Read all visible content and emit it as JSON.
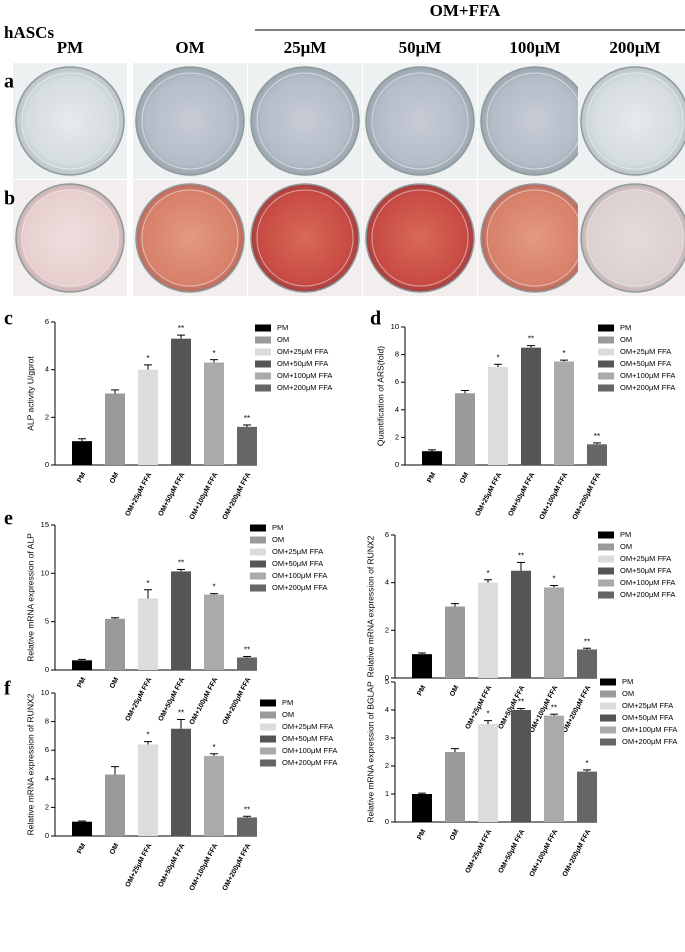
{
  "photos": {
    "cell_line": "hASCs",
    "group": "OM+FFA",
    "columns": [
      "PM",
      "OM",
      "25μM",
      "50μM",
      "100μM",
      "200μM"
    ],
    "rows": [
      "a",
      "b"
    ]
  },
  "panels": [
    "c",
    "d",
    "e",
    "f"
  ],
  "chart_data": [
    {
      "type": "bar",
      "ylabel": "ALP activity U/gprot",
      "categories": [
        "PM",
        "OM",
        "OM+25μM FFA",
        "OM+50μM FFA",
        "OM+100μM FFA",
        "OM+200μM FFA"
      ],
      "colors": [
        "#000000",
        "#9a9a9a",
        "#dcdcdc",
        "#555555",
        "#aaaaaa",
        "#666666"
      ],
      "values": [
        1.0,
        3.0,
        4.0,
        5.3,
        4.3,
        1.6
      ],
      "errors": [
        0.1,
        0.15,
        0.2,
        0.15,
        0.12,
        0.08
      ],
      "annotations": [
        null,
        null,
        "*",
        "**",
        "*",
        "**"
      ],
      "ylim": [
        0,
        6
      ],
      "yticks": [
        0,
        2,
        4,
        6
      ]
    },
    {
      "type": "bar",
      "ylabel": "Quantification of ARS(fold)",
      "categories": [
        "PM",
        "OM",
        "OM+25μM FFA",
        "OM+50μM FFA",
        "OM+100μM FFA",
        "OM+200μM FFA"
      ],
      "colors": [
        "#000000",
        "#9a9a9a",
        "#dcdcdc",
        "#555555",
        "#aaaaaa",
        "#666666"
      ],
      "values": [
        1.0,
        5.2,
        7.1,
        8.5,
        7.5,
        1.5
      ],
      "errors": [
        0.1,
        0.2,
        0.2,
        0.15,
        0.1,
        0.1
      ],
      "annotations": [
        null,
        null,
        "*",
        "**",
        "*",
        "**"
      ],
      "ylim": [
        0,
        10
      ],
      "yticks": [
        0,
        2,
        4,
        6,
        8,
        10
      ]
    },
    {
      "type": "bar",
      "ylabel": "Relative mRNA expression of ALP",
      "categories": [
        "PM",
        "OM",
        "OM+25μM FFA",
        "OM+50μM FFA",
        "OM+100μM FFA",
        "OM+200μM FFA"
      ],
      "colors": [
        "#000000",
        "#9a9a9a",
        "#dcdcdc",
        "#555555",
        "#aaaaaa",
        "#666666"
      ],
      "values": [
        1.0,
        5.3,
        7.4,
        10.2,
        7.8,
        1.3
      ],
      "errors": [
        0.1,
        0.1,
        0.9,
        0.2,
        0.1,
        0.1
      ],
      "annotations": [
        null,
        null,
        "*",
        "**",
        "*",
        "**"
      ],
      "ylim": [
        0,
        15
      ],
      "yticks": [
        0,
        5,
        10,
        15
      ]
    },
    {
      "type": "bar",
      "ylabel": "Relative mRNA expression of RUNX2",
      "categories": [
        "PM",
        "OM",
        "OM+25μM FFA",
        "OM+50μM FFA",
        "OM+100μM FFA",
        "OM+200μM FFA"
      ],
      "colors": [
        "#000000",
        "#9a9a9a",
        "#dcdcdc",
        "#555555",
        "#aaaaaa",
        "#666666"
      ],
      "values": [
        1.0,
        3.0,
        4.0,
        4.5,
        3.8,
        1.2
      ],
      "errors": [
        0.05,
        0.12,
        0.12,
        0.35,
        0.08,
        0.05
      ],
      "annotations": [
        null,
        null,
        "*",
        "**",
        "*",
        "**"
      ],
      "ylim": [
        0,
        6
      ],
      "yticks": [
        0,
        2,
        4,
        6
      ]
    },
    {
      "type": "bar",
      "ylabel": "Relative mRNA expression of RUNX2",
      "categories": [
        "PM",
        "OM",
        "OM+25μM FFA",
        "OM+50μM FFA",
        "OM+100μM FFA",
        "OM+200μM FFA"
      ],
      "colors": [
        "#000000",
        "#9a9a9a",
        "#dcdcdc",
        "#555555",
        "#aaaaaa",
        "#666666"
      ],
      "values": [
        1.0,
        4.3,
        6.4,
        7.5,
        5.6,
        1.3
      ],
      "errors": [
        0.05,
        0.55,
        0.2,
        0.65,
        0.15,
        0.08
      ],
      "annotations": [
        null,
        null,
        "*",
        "**",
        "*",
        "**"
      ],
      "ylim": [
        0,
        10
      ],
      "yticks": [
        0,
        2,
        4,
        6,
        8,
        10
      ]
    },
    {
      "type": "bar",
      "ylabel": "Relative mRNA expression of BGLAP",
      "categories": [
        "PM",
        "OM",
        "OM+25μM FFA",
        "OM+50μM FFA",
        "OM+100μM FFA",
        "OM+200μM FFA"
      ],
      "colors": [
        "#000000",
        "#9a9a9a",
        "#dcdcdc",
        "#555555",
        "#aaaaaa",
        "#666666"
      ],
      "values": [
        1.0,
        2.5,
        3.5,
        4.0,
        3.8,
        1.8
      ],
      "errors": [
        0.03,
        0.12,
        0.12,
        0.05,
        0.05,
        0.06
      ],
      "annotations": [
        null,
        "",
        "*",
        "**",
        "**",
        "*"
      ],
      "ylim": [
        0,
        5
      ],
      "yticks": [
        0,
        1,
        2,
        3,
        4,
        5
      ]
    }
  ]
}
